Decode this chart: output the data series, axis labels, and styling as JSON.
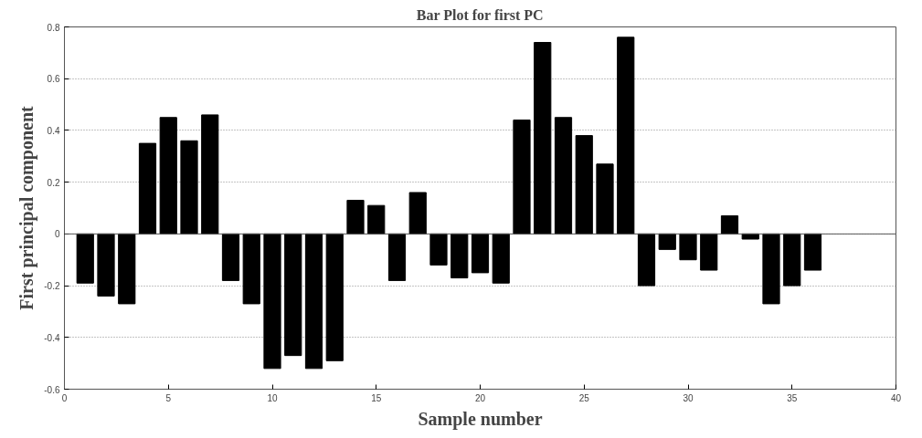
{
  "chart_data": {
    "type": "bar",
    "title": "Bar Plot for first PC",
    "xlabel": "Sample number",
    "ylabel": "First principal component",
    "x": [
      1,
      2,
      3,
      4,
      5,
      6,
      7,
      8,
      9,
      10,
      11,
      12,
      13,
      14,
      15,
      16,
      17,
      18,
      19,
      20,
      21,
      22,
      23,
      24,
      25,
      26,
      27,
      28,
      29,
      30,
      31,
      32,
      33,
      34,
      35,
      36
    ],
    "series": [
      {
        "color": "#000000",
        "values": [
          -0.19,
          -0.24,
          -0.27,
          0.35,
          0.45,
          0.36,
          0.46,
          -0.18,
          -0.27,
          -0.52,
          -0.47,
          -0.52,
          -0.49,
          0.13,
          0.11,
          -0.18,
          0.16,
          -0.12,
          -0.17,
          -0.15,
          -0.19,
          0.44,
          0.74,
          0.45,
          0.38,
          0.27,
          0.76,
          -0.2,
          -0.06,
          -0.1,
          -0.14,
          0.07,
          -0.02,
          -0.27,
          -0.2,
          -0.14
        ]
      }
    ],
    "xlim": [
      0,
      40
    ],
    "xticks": [
      0,
      5,
      10,
      15,
      20,
      25,
      30,
      35,
      40
    ],
    "ylim": [
      -0.6,
      0.8
    ],
    "yticks": [
      -0.6,
      -0.4,
      -0.2,
      0,
      0.2,
      0.4,
      0.6,
      0.8
    ],
    "grid": "y"
  }
}
